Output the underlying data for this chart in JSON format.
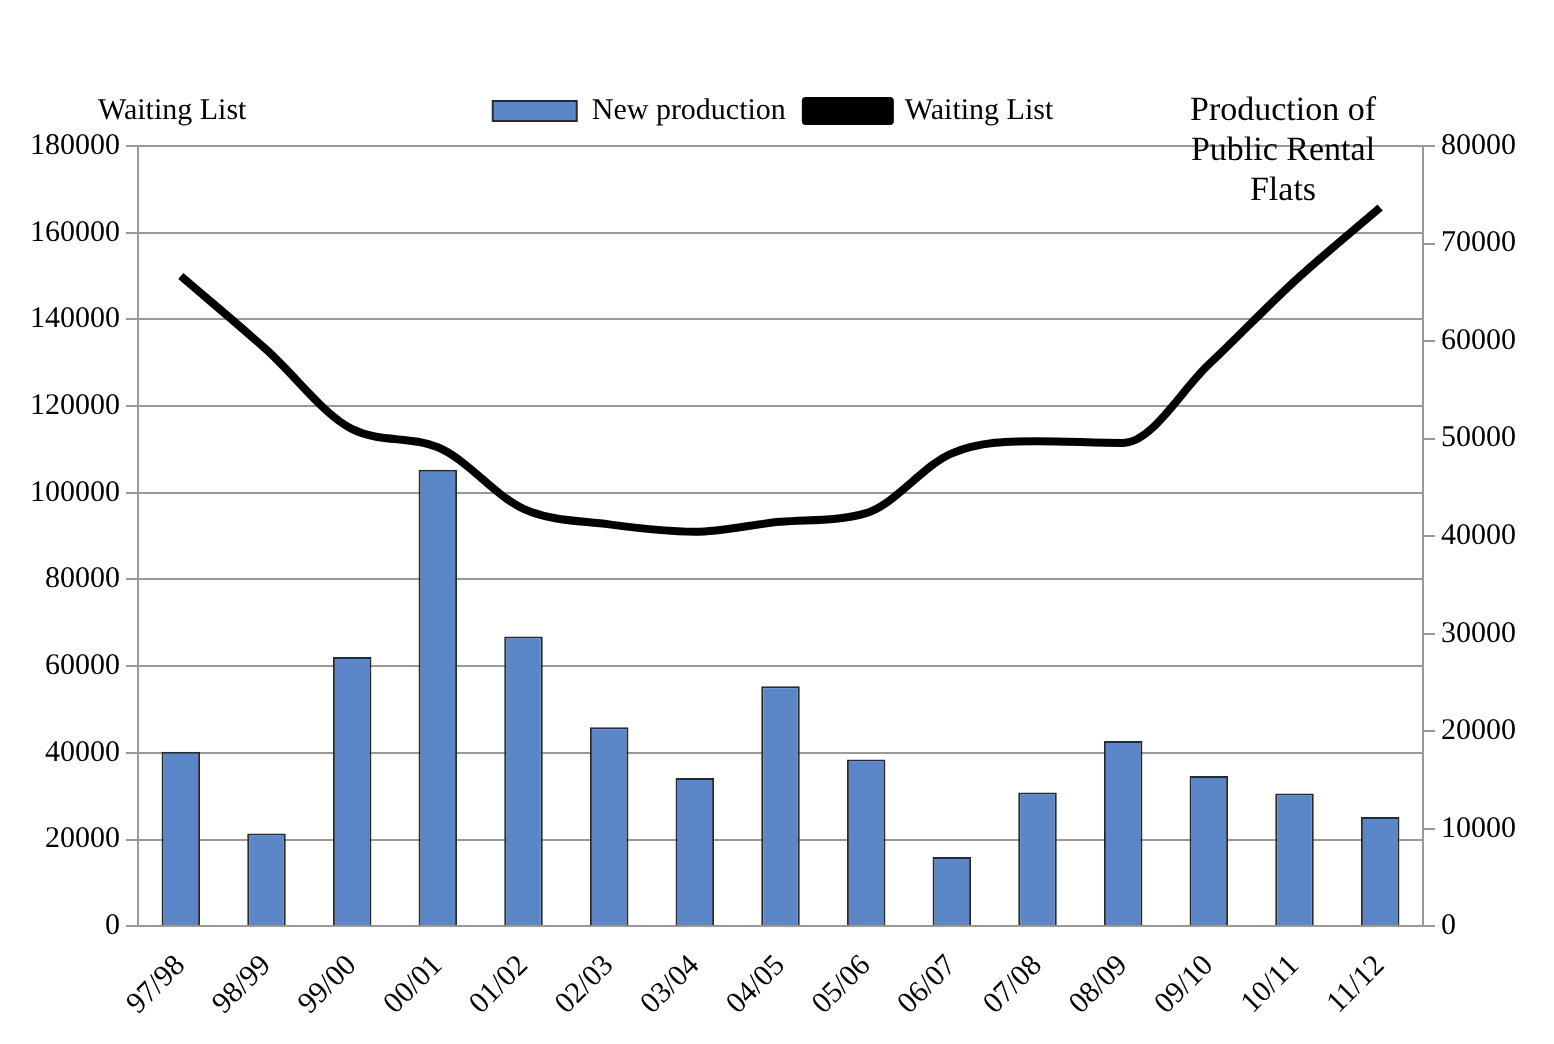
{
  "chart_data": {
    "type": "bar",
    "ylabel": "Waiting List",
    "y2label": "Production of Public Rental Flats",
    "categories": [
      "97/98",
      "98/99",
      "99/00",
      "00/01",
      "01/02",
      "02/03",
      "03/04",
      "04/05",
      "05/06",
      "06/07",
      "07/08",
      "08/09",
      "09/10",
      "10/11",
      "11/12"
    ],
    "series": [
      {
        "name": "New production",
        "axis": "y2",
        "color": "#5b87c8",
        "values": [
          17900,
          9500,
          27600,
          46800,
          29700,
          20400,
          15200,
          24600,
          17100,
          7100,
          13700,
          19000,
          15400,
          13600,
          11200
        ]
      },
      {
        "name": "Waiting List",
        "type": "line",
        "color": "#000000",
        "values": [
          150000,
          133000,
          114700,
          110500,
          96300,
          92700,
          91000,
          93300,
          95300,
          109100,
          111900,
          111500,
          129600,
          148800,
          165800
        ]
      }
    ],
    "ylim": [
      0,
      180000
    ],
    "yticks": [
      0,
      20000,
      40000,
      60000,
      80000,
      100000,
      120000,
      140000,
      160000,
      180000
    ],
    "y2lim": [
      0,
      80000
    ],
    "y2ticks": [
      0,
      10000,
      20000,
      30000,
      40000,
      50000,
      60000,
      70000,
      80000
    ],
    "grid": "y",
    "legend": "top",
    "marker": "none",
    "line_style": "solid"
  }
}
